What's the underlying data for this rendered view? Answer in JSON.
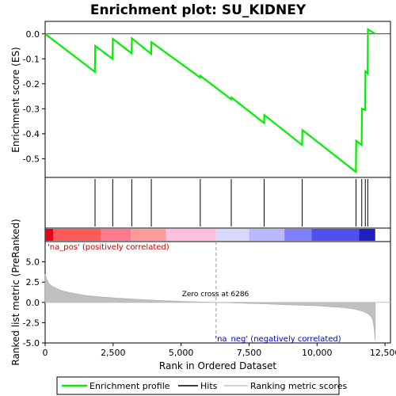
{
  "chart_data": {
    "type": "line",
    "title": "Enrichment plot: SU_KIDNEY",
    "top_panel": {
      "ylabel": "Enrichment score (ES)",
      "ylim": [
        -0.575,
        0.05
      ],
      "yticks": [
        0.0,
        -0.1,
        -0.2,
        -0.3,
        -0.4,
        -0.5
      ],
      "ytick_labels": [
        "0.0",
        "-0.1",
        "-0.2",
        "-0.3",
        "-0.4",
        "-0.5"
      ],
      "series": [
        {
          "name": "Enrichment profile",
          "color": "#00ee00",
          "x": [
            0,
            1830,
            1840,
            2480,
            2490,
            3180,
            3190,
            3900,
            3910,
            5700,
            5710,
            6840,
            6850,
            8050,
            8060,
            9450,
            9460,
            11430,
            11440,
            11640,
            11650,
            11770,
            11780,
            11860,
            11870,
            12140
          ],
          "y": [
            0.0,
            -0.152,
            -0.048,
            -0.1,
            -0.02,
            -0.078,
            -0.018,
            -0.08,
            -0.033,
            -0.175,
            -0.168,
            -0.262,
            -0.255,
            -0.357,
            -0.325,
            -0.445,
            -0.385,
            -0.553,
            -0.428,
            -0.445,
            -0.3,
            -0.305,
            -0.15,
            -0.158,
            0.018,
            0.0
          ]
        }
      ]
    },
    "hits": {
      "name": "Hits",
      "color": "#000000",
      "x": [
        1835,
        2485,
        3185,
        3905,
        5705,
        6845,
        8055,
        9455,
        11435,
        11645,
        11775,
        11865
      ]
    },
    "ranking_bar": {
      "segments": [
        {
          "x0": 0,
          "x1": 300,
          "color": "#e6001a"
        },
        {
          "x0": 300,
          "x1": 2050,
          "color": "#ff5a5a"
        },
        {
          "x0": 2050,
          "x1": 3150,
          "color": "#ff7a8c"
        },
        {
          "x0": 3150,
          "x1": 4450,
          "color": "#ff9a9a"
        },
        {
          "x0": 4450,
          "x1": 6286,
          "color": "#ffc0e0"
        },
        {
          "x0": 6286,
          "x1": 7500,
          "color": "#d8d8ff"
        },
        {
          "x0": 7500,
          "x1": 8800,
          "color": "#b8b8ff"
        },
        {
          "x0": 8800,
          "x1": 9800,
          "color": "#8080ff"
        },
        {
          "x0": 9800,
          "x1": 11550,
          "color": "#5050f0"
        },
        {
          "x0": 11550,
          "x1": 12140,
          "color": "#2020c0"
        }
      ]
    },
    "bottom_panel": {
      "ylabel": "Ranked list metric (PreRanked)",
      "ylim": [
        -5.0,
        7.5
      ],
      "yticks": [
        5.0,
        2.5,
        0.0,
        -2.5,
        -5.0
      ],
      "ytick_labels": [
        "5.0",
        "2.5",
        "0.0",
        "-2.5",
        "-5.0"
      ],
      "series": [
        {
          "name": "Ranking metric scores",
          "color": "#c0c0c0",
          "x": [
            0,
            50,
            150,
            300,
            600,
            1000,
            1500,
            2000,
            3000,
            4000,
            5000,
            6286,
            7000,
            8000,
            9000,
            10000,
            11000,
            11400,
            11700,
            11900,
            12000,
            12050,
            12100,
            12140
          ],
          "y": [
            3.5,
            2.9,
            2.3,
            1.9,
            1.45,
            1.15,
            0.85,
            0.68,
            0.45,
            0.27,
            0.12,
            0.0,
            -0.08,
            -0.18,
            -0.3,
            -0.42,
            -0.65,
            -0.85,
            -1.1,
            -1.45,
            -1.8,
            -2.2,
            -3.2,
            -4.7
          ]
        }
      ],
      "annotations": {
        "zero_cross": "Zero cross at 6286",
        "zero_cross_x": 6286,
        "pos_label": "'na_pos' (positively correlated)",
        "neg_label": "'na_neg' (negatively correlated)"
      }
    },
    "xaxis": {
      "label": "Rank in Ordered Dataset",
      "xlim": [
        0,
        12700
      ],
      "ticks": [
        0,
        2500,
        5000,
        7500,
        10000,
        12500
      ],
      "tick_labels": [
        "0",
        "2,500",
        "5,000",
        "7,500",
        "10,000",
        "12,500"
      ]
    },
    "legend": {
      "placement": "bottom",
      "entries": [
        {
          "label": "Enrichment profile",
          "color": "#00ee00"
        },
        {
          "label": "Hits",
          "color": "#000000"
        },
        {
          "label": "Ranking metric scores",
          "color": "#c0c0c0"
        }
      ]
    }
  }
}
